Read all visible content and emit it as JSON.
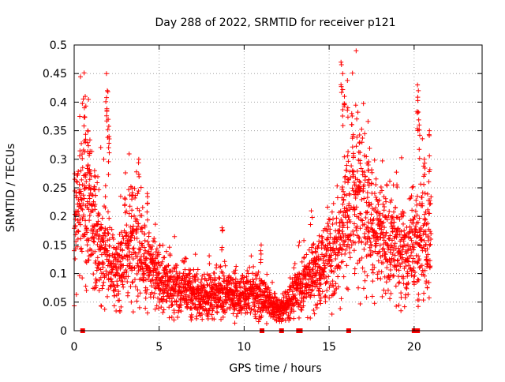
{
  "chart_data": {
    "type": "scatter",
    "title": "Day 288 of 2022, SRMTID for receiver p121",
    "xlabel": "GPS time / hours",
    "ylabel": "SRMTID / TECUs",
    "xlim": [
      0,
      24
    ],
    "ylim": [
      0,
      0.5
    ],
    "xticks": [
      0,
      5,
      10,
      15,
      20
    ],
    "xtick_labels": [
      "0",
      "5",
      "10",
      "15",
      "20"
    ],
    "yticks": [
      0,
      0.05,
      0.1,
      0.15,
      0.2,
      0.25,
      0.3,
      0.35,
      0.4,
      0.45,
      0.5
    ],
    "ytick_labels": [
      "0",
      "0.05",
      "0.1",
      "0.15",
      "0.2",
      "0.25",
      "0.3",
      "0.35",
      "0.4",
      "0.45",
      "0.5"
    ],
    "grid": true,
    "grid_color": "#a0a0a0",
    "marker": "plus",
    "marker_color": "#ff0000",
    "series": [
      {
        "name": "SRMTID",
        "envelope": {
          "x": [
            0,
            0.5,
            1,
            1.5,
            2,
            2.5,
            3,
            3.5,
            4,
            4.5,
            5,
            5.5,
            6,
            6.5,
            7,
            7.5,
            8,
            8.5,
            9,
            9.5,
            10,
            10.5,
            11,
            11.5,
            12,
            12.5,
            13,
            13.5,
            14,
            14.5,
            15,
            15.5,
            16,
            16.5,
            17,
            17.5,
            18,
            18.5,
            19,
            19.5,
            20,
            20.5,
            21
          ],
          "y": [
            0.18,
            0.22,
            0.2,
            0.15,
            0.13,
            0.1,
            0.14,
            0.16,
            0.14,
            0.11,
            0.09,
            0.08,
            0.075,
            0.07,
            0.065,
            0.06,
            0.065,
            0.065,
            0.07,
            0.06,
            0.06,
            0.065,
            0.06,
            0.045,
            0.035,
            0.045,
            0.07,
            0.085,
            0.1,
            0.11,
            0.12,
            0.15,
            0.2,
            0.24,
            0.22,
            0.2,
            0.16,
            0.15,
            0.15,
            0.13,
            0.14,
            0.16,
            0.18
          ]
        },
        "spikes": [
          {
            "x": 0.4,
            "y": 0.28
          },
          {
            "x": 0.6,
            "y": 0.39
          },
          {
            "x": 0.65,
            "y": 0.41
          },
          {
            "x": 0.8,
            "y": 0.35
          },
          {
            "x": 0.9,
            "y": 0.31
          },
          {
            "x": 1.2,
            "y": 0.28
          },
          {
            "x": 1.9,
            "y": 0.45
          },
          {
            "x": 1.95,
            "y": 0.42
          },
          {
            "x": 2.0,
            "y": 0.37
          },
          {
            "x": 2.05,
            "y": 0.34
          },
          {
            "x": 3.4,
            "y": 0.25
          },
          {
            "x": 3.8,
            "y": 0.3
          },
          {
            "x": 4.3,
            "y": 0.24
          },
          {
            "x": 8.7,
            "y": 0.18
          },
          {
            "x": 11.0,
            "y": 0.15
          },
          {
            "x": 15.7,
            "y": 0.47
          },
          {
            "x": 15.8,
            "y": 0.45
          },
          {
            "x": 15.9,
            "y": 0.41
          },
          {
            "x": 16.1,
            "y": 0.39
          },
          {
            "x": 16.4,
            "y": 0.34
          },
          {
            "x": 16.8,
            "y": 0.33
          },
          {
            "x": 17.3,
            "y": 0.29
          },
          {
            "x": 20.2,
            "y": 0.43
          },
          {
            "x": 20.25,
            "y": 0.42
          },
          {
            "x": 20.3,
            "y": 0.36
          },
          {
            "x": 20.6,
            "y": 0.3
          },
          {
            "x": 20.9,
            "y": 0.35
          }
        ],
        "zero_points_x": [
          0.5,
          11.05,
          12.2,
          13.2,
          13.3,
          16.15,
          20.0,
          20.2
        ]
      }
    ]
  }
}
